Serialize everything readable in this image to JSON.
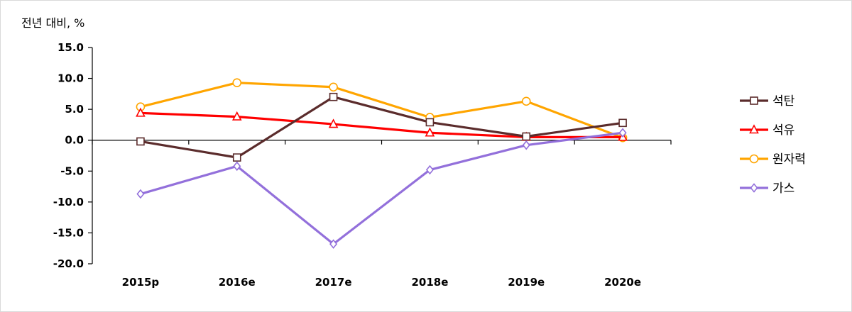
{
  "chart_data": {
    "type": "line",
    "ylabel": "전년 대비, %",
    "categories": [
      "2015p",
      "2016e",
      "2017e",
      "2018e",
      "2019e",
      "2020e"
    ],
    "ylim": [
      -20,
      15
    ],
    "yticks": [
      "15.0",
      "10.0",
      "5.0",
      "0.0",
      "-5.0",
      "-10.0",
      "-15.0",
      "-20.0"
    ],
    "legend_position": "right",
    "series": [
      {
        "name": "석탄",
        "color": "#5b2c2c",
        "marker": "square",
        "values": [
          -0.2,
          -2.8,
          7.0,
          2.9,
          0.6,
          2.8
        ]
      },
      {
        "name": "석유",
        "color": "#ff0000",
        "marker": "triangle",
        "values": [
          4.4,
          3.8,
          2.6,
          1.2,
          0.5,
          0.5
        ]
      },
      {
        "name": "원자력",
        "color": "#ffa500",
        "marker": "circle",
        "values": [
          5.4,
          9.3,
          8.6,
          3.7,
          6.3,
          0.4
        ]
      },
      {
        "name": "가스",
        "color": "#9370db",
        "marker": "diamond",
        "values": [
          -8.7,
          -4.2,
          -16.8,
          -4.8,
          -0.8,
          1.2
        ]
      }
    ]
  }
}
